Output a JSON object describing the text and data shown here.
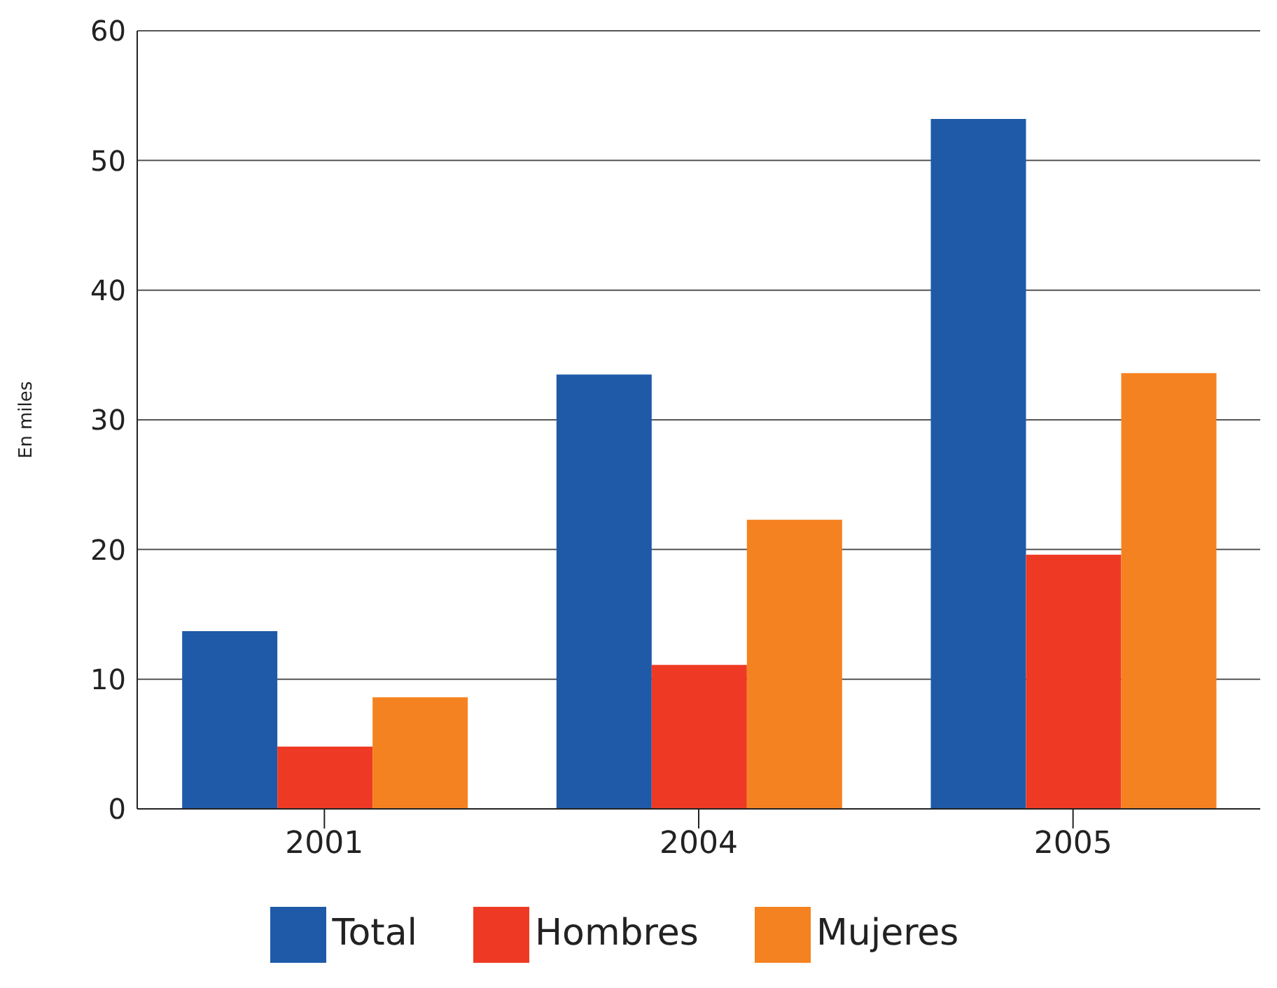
{
  "chart_data": {
    "type": "bar",
    "ylabel": "En miles",
    "categories": [
      "2001",
      "2004",
      "2005"
    ],
    "series": [
      {
        "name": "Total",
        "color": "#1f5aa8",
        "values": [
          13.7,
          33.5,
          53.2
        ]
      },
      {
        "name": "Hombres",
        "color": "#ee3a24",
        "values": [
          4.8,
          11.1,
          19.6
        ]
      },
      {
        "name": "Mujeres",
        "color": "#f58220",
        "values": [
          8.6,
          22.3,
          33.6
        ]
      }
    ],
    "ylim": [
      0,
      60
    ],
    "yticks": [
      0,
      10,
      20,
      30,
      40,
      50,
      60
    ],
    "grid": "y",
    "legend": "bottom"
  }
}
